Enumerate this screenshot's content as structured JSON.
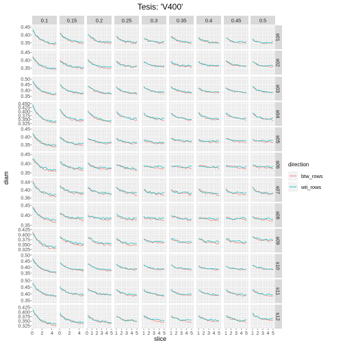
{
  "chart_data": {
    "type": "line",
    "title": "Tesis: 'V400'",
    "xlabel": "slice",
    "ylabel": "diam",
    "column_facets": [
      "0.1",
      "0.15",
      "0.2",
      "0.25",
      "0.3",
      "0.35",
      "0.4",
      "0.45",
      "0.5"
    ],
    "row_facets": [
      "s01",
      "s02",
      "s03",
      "s04",
      "s05",
      "s06",
      "s07",
      "s08",
      "s09",
      "s10",
      "s11",
      "s12"
    ],
    "x_tick_labels": [
      [
        "0",
        "2",
        "4"
      ],
      [
        "0",
        "2",
        "4"
      ],
      [
        "0",
        "1",
        "2",
        "3",
        "4",
        "5"
      ],
      [
        "1",
        "2",
        "3",
        "4",
        "5"
      ],
      [
        "1",
        "2",
        "3",
        "4",
        "5"
      ],
      [
        "1",
        "2",
        "3",
        "4",
        "5"
      ],
      [
        "1",
        "2",
        "3",
        "4",
        "5"
      ],
      [
        "1",
        "2",
        "3",
        "4",
        "5"
      ],
      [
        "1",
        "2",
        "3",
        "4",
        "5"
      ]
    ],
    "x_ranges": [
      [
        0,
        5
      ],
      [
        0,
        5
      ],
      [
        0,
        5
      ],
      [
        0.6,
        5.4
      ],
      [
        0.6,
        5.4
      ],
      [
        0.6,
        5.4
      ],
      [
        0.6,
        5.4
      ],
      [
        0.6,
        5.4
      ],
      [
        0.6,
        5.4
      ]
    ],
    "y_ranges": [
      [
        0.31,
        0.46
      ],
      [
        0.31,
        0.46
      ],
      [
        0.31,
        0.52
      ],
      [
        0.31,
        0.46
      ],
      [
        0.31,
        0.46
      ],
      [
        0.33,
        0.46
      ],
      [
        0.34,
        0.46
      ],
      [
        0.34,
        0.46
      ],
      [
        0.31,
        0.43
      ],
      [
        0.31,
        0.51
      ],
      [
        0.33,
        0.51
      ],
      [
        0.31,
        0.44
      ]
    ],
    "y_tick_labels": [
      [
        "0.35",
        "0.40",
        "0.45"
      ],
      [
        "0.35",
        "0.40",
        "0.45"
      ],
      [
        "0.35",
        "0.40",
        "0.45",
        "0.50"
      ],
      [
        "0.325",
        "0.350",
        "0.375",
        "0.400",
        "0.425",
        "0.450"
      ],
      [
        "0.35",
        "0.40",
        "0.45"
      ],
      [
        "0.35",
        "0.40",
        "0.45"
      ],
      [
        "0.36",
        "0.40",
        "0.44"
      ],
      [
        "0.35",
        "0.40",
        "0.45"
      ],
      [
        "0.325",
        "0.350",
        "0.375",
        "0.400",
        "0.425"
      ],
      [
        "0.35",
        "0.40",
        "0.45",
        "0.50"
      ],
      [
        "0.35",
        "0.40",
        "0.45",
        "0.50"
      ],
      [
        "0.325",
        "0.350",
        "0.375",
        "0.400",
        "0.425"
      ]
    ],
    "grid": true,
    "legend": {
      "title": "direction",
      "position": "right",
      "entries": [
        {
          "name": "btw_rows",
          "color": "#F8766D"
        },
        {
          "name": "wti_rows",
          "color": "#00BFC4"
        }
      ]
    },
    "series_colors": {
      "btw_rows": "#F8766D",
      "wti_rows": "#00BFC4"
    },
    "series_note": "Each panel shows btw_rows and wti_rows diameter profiles decreasing with slice; values approximated from the figure.",
    "panel_start_values": [
      [
        0.43,
        0.41,
        0.4,
        0.39,
        0.38,
        0.39,
        0.38,
        0.38,
        0.37
      ],
      [
        0.42,
        0.4,
        0.4,
        0.39,
        0.39,
        0.39,
        0.39,
        0.4,
        0.39
      ],
      [
        0.48,
        0.45,
        0.44,
        0.43,
        0.43,
        0.43,
        0.42,
        0.42,
        0.43
      ],
      [
        0.44,
        0.41,
        0.4,
        0.4,
        0.39,
        0.39,
        0.39,
        0.39,
        0.39
      ],
      [
        0.42,
        0.4,
        0.39,
        0.39,
        0.38,
        0.39,
        0.38,
        0.39,
        0.38
      ],
      [
        0.43,
        0.41,
        0.4,
        0.4,
        0.39,
        0.39,
        0.39,
        0.39,
        0.39
      ],
      [
        0.44,
        0.42,
        0.41,
        0.41,
        0.4,
        0.4,
        0.4,
        0.4,
        0.41
      ],
      [
        0.44,
        0.41,
        0.4,
        0.4,
        0.39,
        0.4,
        0.39,
        0.39,
        0.39
      ],
      [
        0.41,
        0.39,
        0.39,
        0.38,
        0.38,
        0.38,
        0.38,
        0.38,
        0.39
      ],
      [
        0.47,
        0.44,
        0.43,
        0.42,
        0.42,
        0.42,
        0.41,
        0.41,
        0.42
      ],
      [
        0.48,
        0.45,
        0.44,
        0.43,
        0.43,
        0.43,
        0.43,
        0.43,
        0.43
      ],
      [
        0.41,
        0.39,
        0.38,
        0.38,
        0.38,
        0.38,
        0.38,
        0.38,
        0.39
      ]
    ],
    "panel_end_values": [
      [
        0.34,
        0.35,
        0.35,
        0.35,
        0.35,
        0.35,
        0.35,
        0.35,
        0.35
      ],
      [
        0.34,
        0.35,
        0.35,
        0.36,
        0.36,
        0.36,
        0.36,
        0.36,
        0.36
      ],
      [
        0.36,
        0.37,
        0.37,
        0.37,
        0.38,
        0.38,
        0.38,
        0.38,
        0.38
      ],
      [
        0.33,
        0.34,
        0.34,
        0.35,
        0.35,
        0.35,
        0.35,
        0.35,
        0.35
      ],
      [
        0.34,
        0.35,
        0.36,
        0.36,
        0.36,
        0.37,
        0.37,
        0.37,
        0.37
      ],
      [
        0.36,
        0.37,
        0.37,
        0.37,
        0.38,
        0.38,
        0.38,
        0.38,
        0.38
      ],
      [
        0.37,
        0.38,
        0.38,
        0.38,
        0.38,
        0.38,
        0.38,
        0.38,
        0.38
      ],
      [
        0.37,
        0.38,
        0.38,
        0.38,
        0.38,
        0.38,
        0.38,
        0.38,
        0.38
      ],
      [
        0.33,
        0.35,
        0.35,
        0.35,
        0.36,
        0.36,
        0.36,
        0.36,
        0.37
      ],
      [
        0.35,
        0.37,
        0.37,
        0.38,
        0.38,
        0.38,
        0.38,
        0.38,
        0.38
      ],
      [
        0.38,
        0.39,
        0.39,
        0.39,
        0.39,
        0.39,
        0.39,
        0.39,
        0.39
      ],
      [
        0.33,
        0.34,
        0.34,
        0.35,
        0.35,
        0.35,
        0.35,
        0.35,
        0.36
      ]
    ],
    "points_per_panel": [
      20,
      20,
      16,
      14,
      14,
      12,
      12,
      10,
      10
    ]
  }
}
